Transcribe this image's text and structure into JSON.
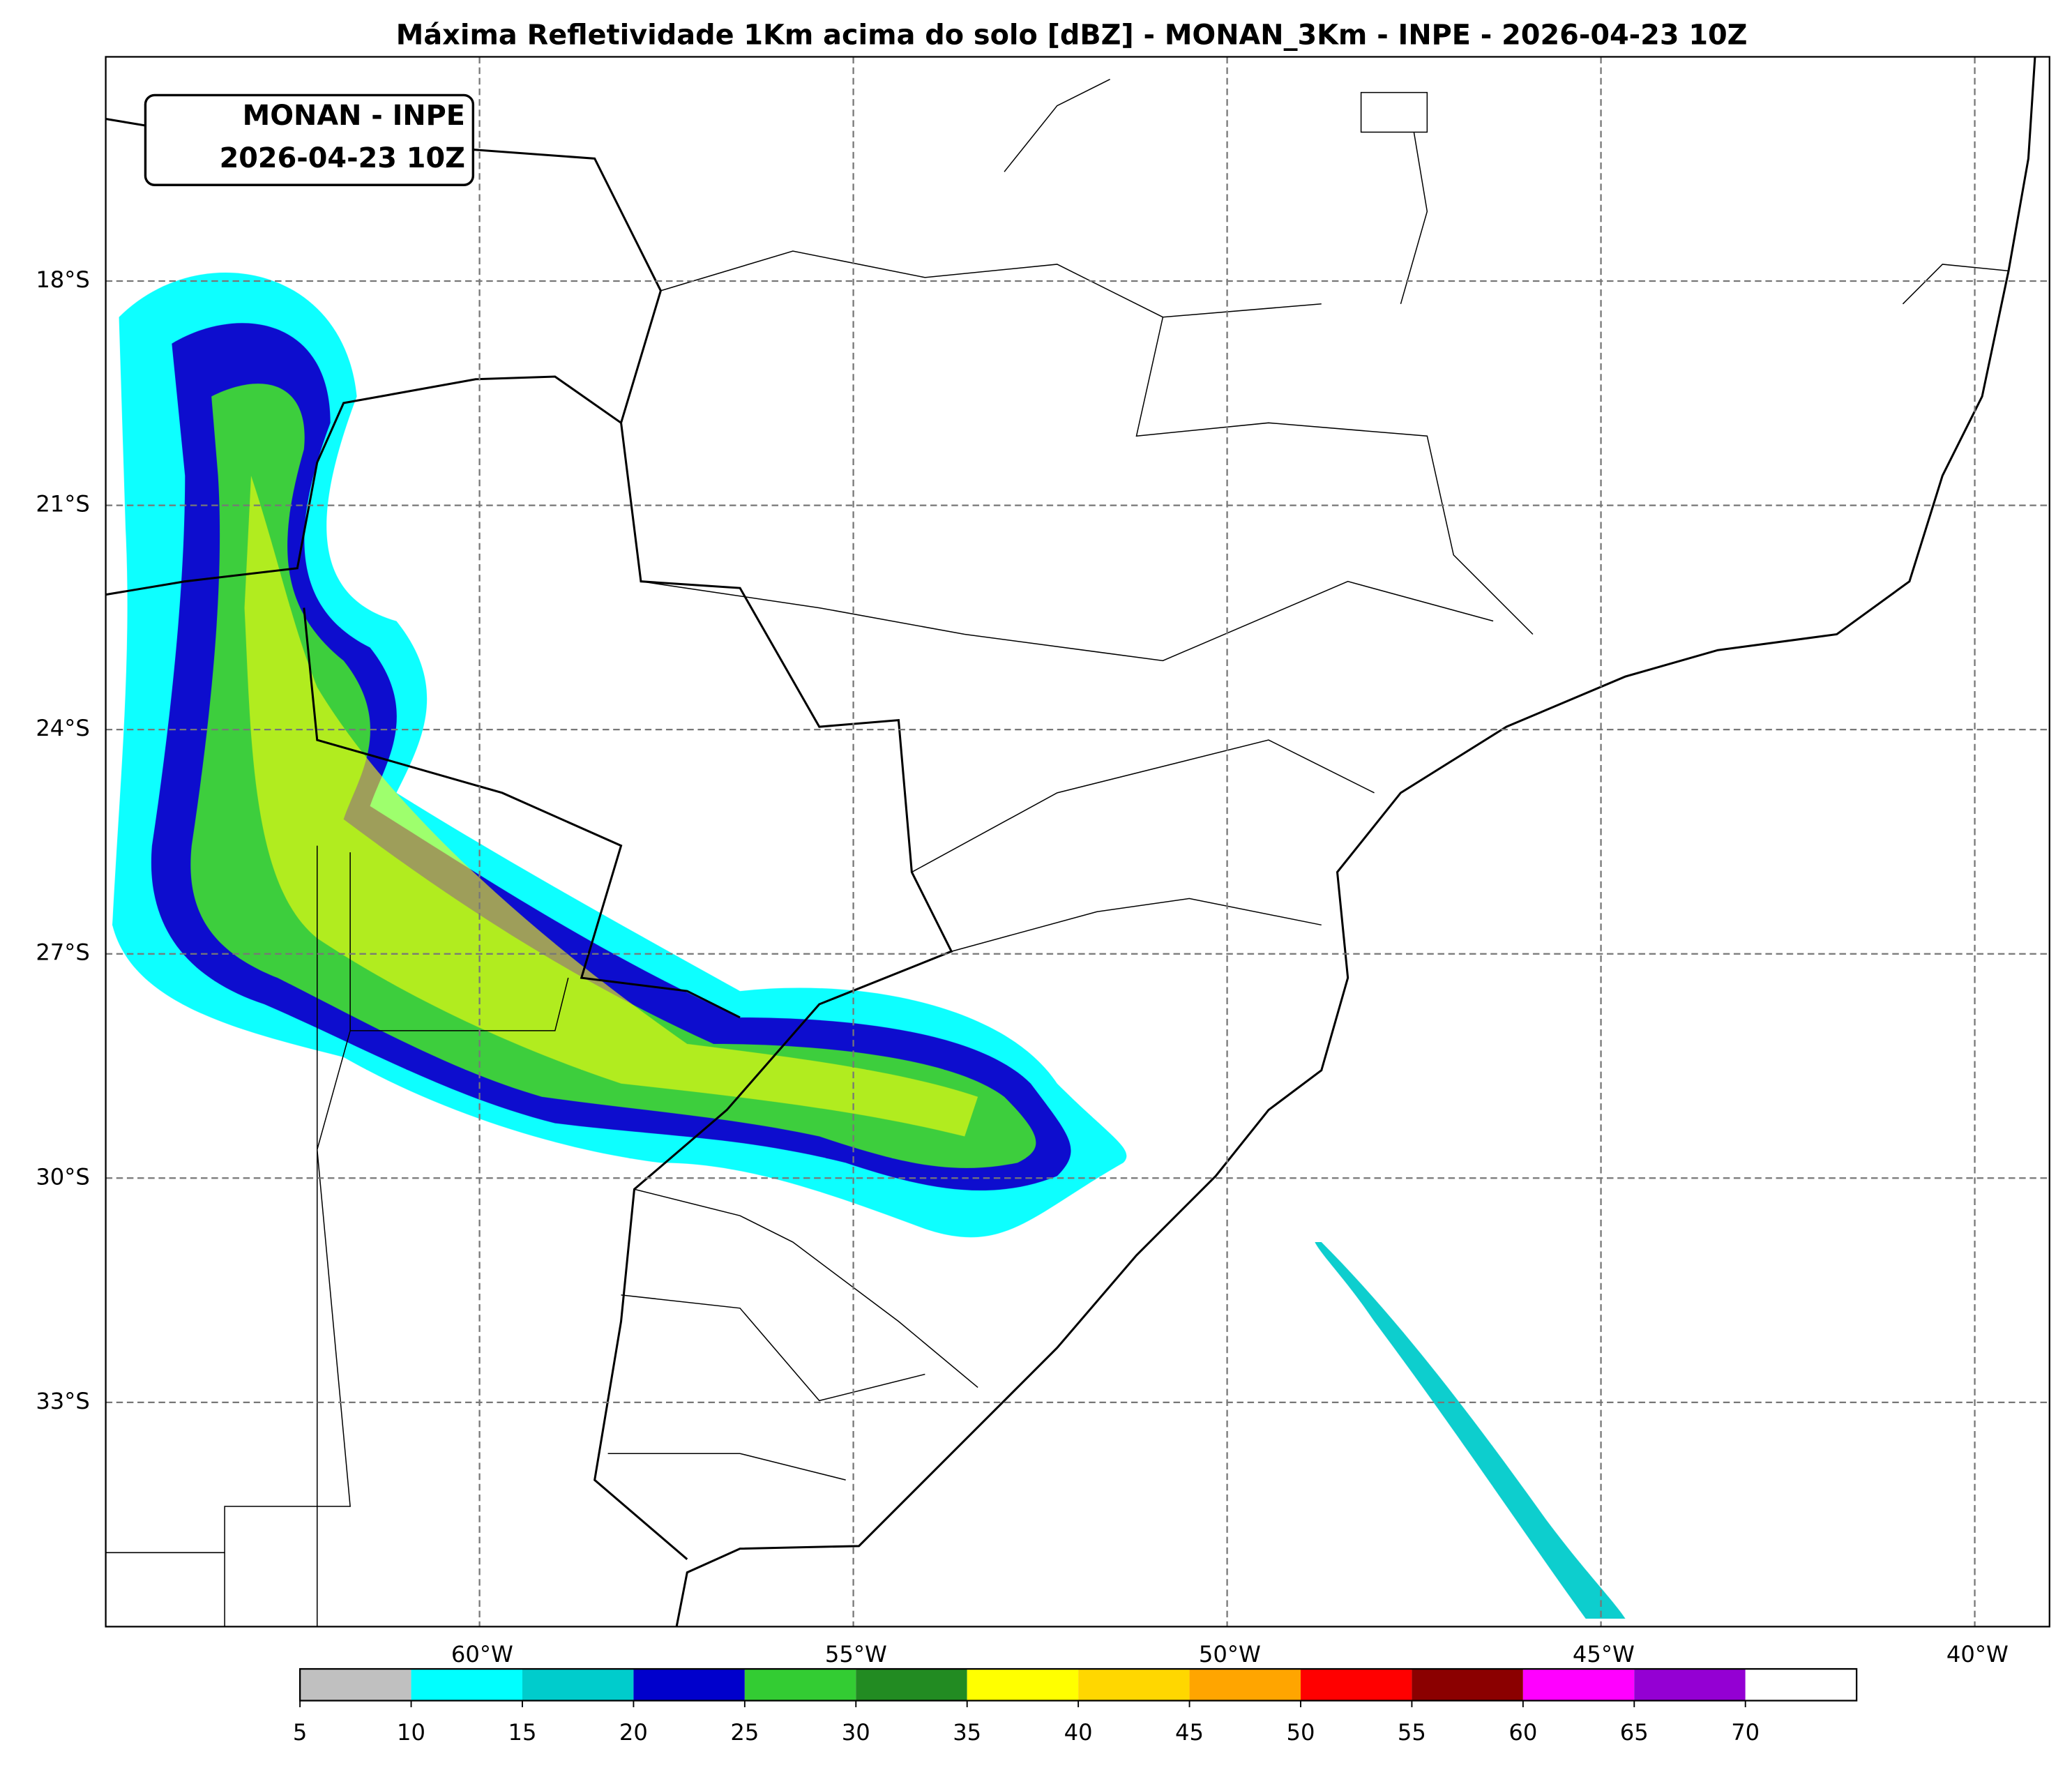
{
  "title": "Máxima Refletividade 1Km acima do solo [dBZ] - MONAN_3Km - INPE - 2026-04-23 10Z",
  "label_box": {
    "lines": [
      "MONAN - INPE",
      "2026-04-23 10Z"
    ]
  },
  "map": {
    "xlim": [
      -65,
      -39
    ],
    "ylim": [
      -36,
      -15
    ],
    "lon_ticks": [
      {
        "value": -60,
        "label": "60°W"
      },
      {
        "value": -55,
        "label": "55°W"
      },
      {
        "value": -50,
        "label": "50°W"
      },
      {
        "value": -45,
        "label": "45°W"
      },
      {
        "value": -40,
        "label": "40°W"
      }
    ],
    "lat_ticks": [
      {
        "value": -18,
        "label": "18°S"
      },
      {
        "value": -21,
        "label": "21°S"
      },
      {
        "value": -24,
        "label": "24°S"
      },
      {
        "value": -27,
        "label": "27°S"
      },
      {
        "value": -30,
        "label": "30°S"
      },
      {
        "value": -33,
        "label": "33°S"
      }
    ],
    "grid": true
  },
  "colorbar": {
    "lim": [
      5,
      75
    ],
    "ticks": [
      5,
      10,
      15,
      20,
      25,
      30,
      35,
      40,
      45,
      50,
      55,
      60,
      65,
      70
    ],
    "colors": [
      "#c0c0c0",
      "#00ffff",
      "#00cccc",
      "#0000cc",
      "#33cc33",
      "#228b22",
      "#ffff00",
      "#ffd700",
      "#ffa500",
      "#ff0000",
      "#8b0000",
      "#ff00ff",
      "#9400d3",
      "#ffffff"
    ]
  }
}
